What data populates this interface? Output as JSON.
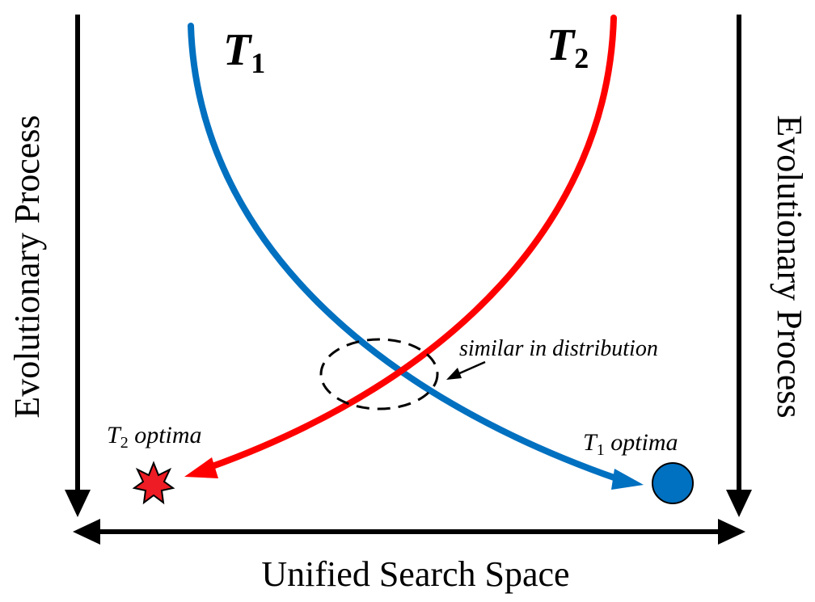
{
  "curves": {
    "t1": {
      "letter": "T",
      "subscript": "1",
      "color": "#0070c0"
    },
    "t2": {
      "letter": "T",
      "subscript": "2",
      "color": "#ff0000"
    }
  },
  "axes": {
    "left_label": "Evolutionary Process",
    "right_label": "Evolutionary Process",
    "bottom_label": "Unified Search Space"
  },
  "annotation": {
    "text": "similar in distribution"
  },
  "optima": {
    "t2": {
      "letter": "T",
      "subscript": "2",
      "suffix": " optima",
      "marker": "star",
      "color": "#ee1c24"
    },
    "t1": {
      "letter": "T",
      "subscript": "1",
      "suffix": " optima",
      "marker": "circle",
      "color": "#0070c0"
    }
  }
}
